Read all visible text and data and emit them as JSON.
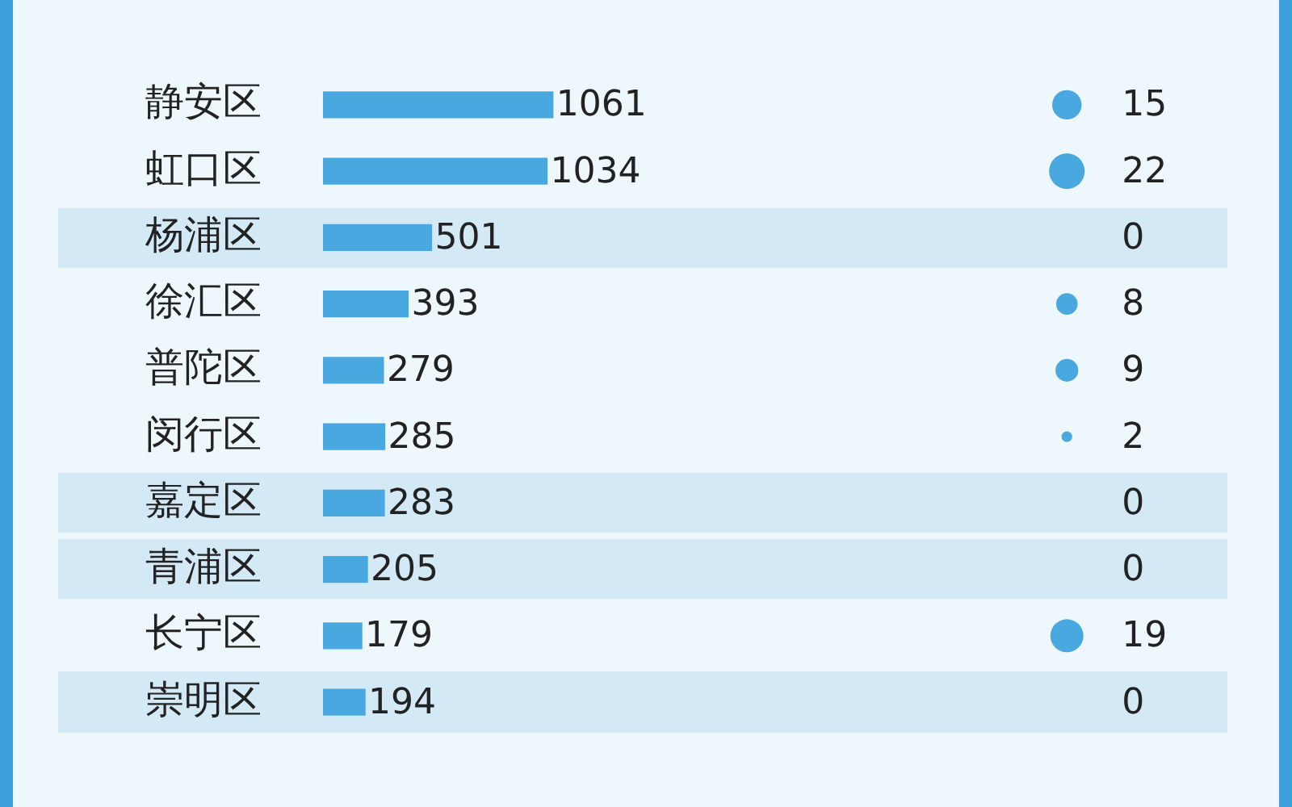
{
  "chart_data": [
    {
      "type": "bar",
      "orientation": "horizontal",
      "categories": [
        "静安区",
        "虹口区",
        "杨浦区",
        "徐汇区",
        "普陀区",
        "闵行区",
        "嘉定区",
        "青浦区",
        "长宁区",
        "崇明区"
      ],
      "values": [
        1061,
        1034,
        501,
        393,
        279,
        285,
        283,
        205,
        179,
        194
      ],
      "color": "#4aa8e0",
      "data_labels": true,
      "tick_labels": "y",
      "grid": false,
      "legend": false
    },
    {
      "type": "other",
      "values": [
        15,
        22,
        0,
        8,
        9,
        2,
        0,
        0,
        19,
        0
      ],
      "color": "#4aa8e0",
      "data_labels": true
    }
  ]
}
